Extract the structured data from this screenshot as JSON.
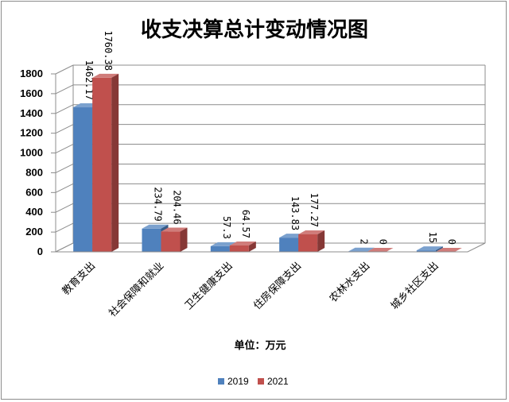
{
  "chart_data": {
    "type": "bar",
    "title": "收支决算总计变动情况图",
    "xlabel": "单位：万元",
    "ylabel": "",
    "ylim": [
      0,
      1800
    ],
    "ytick_step": 200,
    "categories": [
      "教育支出",
      "社会保障和就业",
      "卫生健康支出",
      "住房保障支出",
      "农林水支出",
      "城乡社区支出"
    ],
    "series": [
      {
        "name": "2019",
        "color": "#4f81bd",
        "values": [
          1462.17,
          234.79,
          57.3,
          143.83,
          2,
          15
        ],
        "labels": [
          "1462.17",
          "234.79",
          "57.3",
          "143.83",
          "2",
          "15"
        ]
      },
      {
        "name": "2021",
        "color": "#c0504d",
        "values": [
          1760.38,
          204.46,
          64.57,
          177.27,
          0,
          0
        ],
        "labels": [
          "1760.38",
          "204.46",
          "64.57",
          "177.27",
          "0",
          "0"
        ]
      }
    ],
    "grid": true,
    "style": "3d-clustered",
    "legend_position": "bottom"
  }
}
